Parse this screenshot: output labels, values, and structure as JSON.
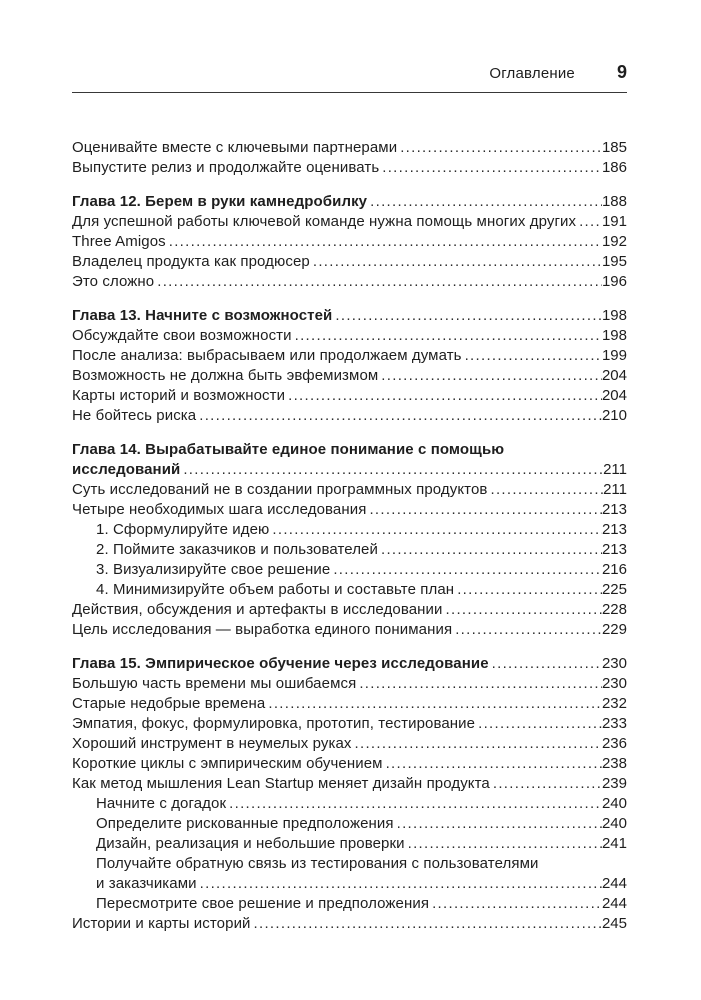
{
  "page_header": {
    "running_title": "Оглавление",
    "page_number": "9"
  },
  "toc": {
    "entries": [
      {
        "text": "Оценивайте вместе с ключевыми партнерами",
        "page": "185"
      },
      {
        "text": "Выпустите релиз и продолжайте оценивать",
        "page": "186"
      },
      {
        "text": "Глава 12. Берем в руки камнедробилку",
        "page": "188",
        "bold": true,
        "gap": true
      },
      {
        "text": "Для успешной работы ключевой команде нужна помощь многих других",
        "page": "191"
      },
      {
        "text": "Three Amigos",
        "page": "192"
      },
      {
        "text": "Владелец продукта как продюсер",
        "page": "195"
      },
      {
        "text": "Это сложно",
        "page": "196"
      },
      {
        "text": "Глава 13. Начните с возможностей",
        "page": "198",
        "bold": true,
        "gap": true
      },
      {
        "text": "Обсуждайте свои возможности",
        "page": "198"
      },
      {
        "text": "После анализа: выбрасываем или продолжаем думать",
        "page": "199"
      },
      {
        "text": "Возможность не должна быть эвфемизмом",
        "page": "204"
      },
      {
        "text": "Карты историй и возможности",
        "page": "204"
      },
      {
        "text": "Не бойтесь риска",
        "page": "210"
      },
      {
        "text": "Глава 14. Вырабатывайте единое понимание с помощью",
        "text2": "исследований",
        "page": "211",
        "bold": true,
        "gap": true
      },
      {
        "text": "Суть исследований не в создании программных продуктов",
        "page": "211"
      },
      {
        "text": "Четыре необходимых шага исследования",
        "page": "213"
      },
      {
        "text": "1. Сформулируйте идею",
        "page": "213",
        "indent": true
      },
      {
        "text": "2. Поймите заказчиков и пользователей",
        "page": "213",
        "indent": true
      },
      {
        "text": "3. Визуализируйте свое решение",
        "page": "216",
        "indent": true
      },
      {
        "text": "4. Минимизируйте объем работы и составьте план",
        "page": "225",
        "indent": true
      },
      {
        "text": "Действия, обсуждения и артефакты в исследовании",
        "page": "228"
      },
      {
        "text": "Цель исследования — выработка единого понимания",
        "page": "229"
      },
      {
        "text": "Глава 15. Эмпирическое обучение через исследование",
        "page": "230",
        "bold": true,
        "gap": true
      },
      {
        "text": "Большую часть времени мы ошибаемся",
        "page": "230"
      },
      {
        "text": "Старые недобрые времена",
        "page": "232"
      },
      {
        "text": "Эмпатия, фокус, формулировка, прототип, тестирование",
        "page": "233"
      },
      {
        "text": "Хороший инструмент в неумелых руках",
        "page": "236"
      },
      {
        "text": "Короткие циклы с эмпирическим обучением",
        "page": "238"
      },
      {
        "text": "Как метод мышления Lean Startup меняет дизайн продукта",
        "page": "239"
      },
      {
        "text": "Начните с догадок",
        "page": "240",
        "indent": true
      },
      {
        "text": "Определите рискованные предположения",
        "page": "240",
        "indent": true
      },
      {
        "text": "Дизайн, реализация и небольшие проверки",
        "page": "241",
        "indent": true
      },
      {
        "text": "Получайте обратную связь из тестирования с пользователями",
        "text2": "и заказчиками",
        "page": "244",
        "indent": true
      },
      {
        "text": "Пересмотрите свое решение и предположения",
        "page": "244",
        "indent": true
      },
      {
        "text": "Истории и карты историй",
        "page": "245"
      }
    ]
  }
}
